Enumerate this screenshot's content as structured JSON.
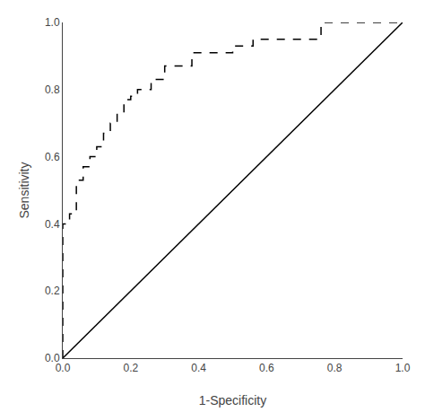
{
  "chart_data": {
    "type": "line",
    "xlabel": "1-Specificity",
    "ylabel": "Sensitivity",
    "series": [
      {
        "color": "#000000",
        "line_style": "dashed",
        "x": [
          0.0,
          0.0,
          0.02,
          0.02,
          0.04,
          0.04,
          0.06,
          0.06,
          0.08,
          0.08,
          0.1,
          0.1,
          0.12,
          0.12,
          0.14,
          0.14,
          0.16,
          0.16,
          0.18,
          0.18,
          0.2,
          0.2,
          0.22,
          0.22,
          0.26,
          0.26,
          0.3,
          0.3,
          0.38,
          0.38,
          0.5,
          0.5,
          0.56,
          0.56,
          0.76,
          0.76,
          1.0
        ],
        "values": [
          0.0,
          0.4,
          0.4,
          0.43,
          0.43,
          0.53,
          0.53,
          0.57,
          0.57,
          0.6,
          0.6,
          0.63,
          0.63,
          0.67,
          0.67,
          0.7,
          0.7,
          0.73,
          0.73,
          0.77,
          0.77,
          0.78,
          0.78,
          0.8,
          0.8,
          0.83,
          0.83,
          0.87,
          0.87,
          0.91,
          0.91,
          0.93,
          0.93,
          0.95,
          0.95,
          1.0,
          1.0
        ]
      },
      {
        "color": "#000000",
        "line_style": "solid",
        "x": [
          0,
          1
        ],
        "values": [
          0,
          1
        ]
      }
    ],
    "xlim": [
      0.0,
      1.0
    ],
    "ylim": [
      0.0,
      1.0
    ],
    "xticks": [
      {
        "value": 0.0,
        "label": "0.0"
      },
      0.2,
      0.4,
      0.6,
      0.8,
      {
        "value": 1.0,
        "label": "1.0"
      }
    ],
    "yticks": [
      {
        "value": 0.0,
        "label": "0.0"
      },
      0.2,
      0.4,
      0.6,
      0.8,
      {
        "value": 1.0,
        "label": "1.0"
      }
    ],
    "grid": false
  }
}
